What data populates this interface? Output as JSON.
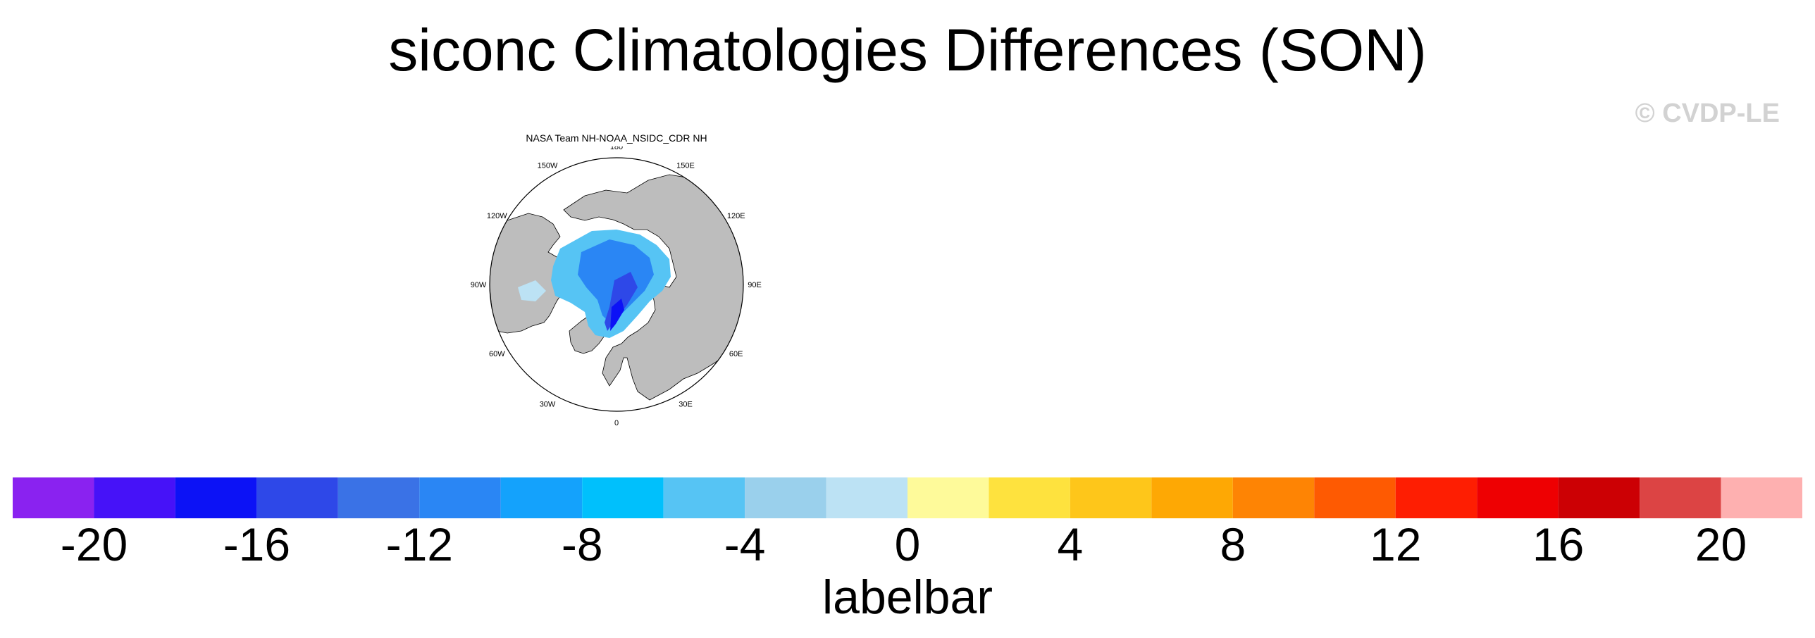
{
  "title": "siconc Climatologies Differences (SON)",
  "watermark": "© CVDP-LE",
  "panel": {
    "title": "NASA Team NH-NOAA_NSIDC_CDR NH",
    "lon_labels": [
      {
        "text": "180",
        "lon": 180
      },
      {
        "text": "150E",
        "lon": 150
      },
      {
        "text": "120E",
        "lon": 120
      },
      {
        "text": "90E",
        "lon": 90
      },
      {
        "text": "60E",
        "lon": 60
      },
      {
        "text": "30E",
        "lon": 30
      },
      {
        "text": "0",
        "lon": 0
      },
      {
        "text": "30W",
        "lon": -30
      },
      {
        "text": "60W",
        "lon": -60
      },
      {
        "text": "90W",
        "lon": -90
      },
      {
        "text": "120W",
        "lon": -120
      },
      {
        "text": "150W",
        "lon": -150
      }
    ]
  },
  "colorbar": {
    "label": "labelbar",
    "colors": [
      "#8a22f0",
      "#4612f8",
      "#0c12f6",
      "#2e48e8",
      "#3a72e6",
      "#2a86f4",
      "#14a2fc",
      "#00c0fc",
      "#56c4f4",
      "#9ad0ec",
      "#bce2f4",
      "#fefa9a",
      "#fee23e",
      "#fec61a",
      "#fea804",
      "#fe8404",
      "#fe5a02",
      "#fe1e02",
      "#ee0002",
      "#cc0004",
      "#dc4444",
      "#feb0b0"
    ],
    "tick_labels": [
      "-20",
      "-16",
      "-12",
      "-8",
      "-4",
      "0",
      "4",
      "8",
      "12",
      "16",
      "20"
    ],
    "ticks": [
      -20,
      -16,
      -12,
      -8,
      -4,
      0,
      4,
      8,
      12,
      16,
      20
    ],
    "range": [
      -22,
      22
    ]
  }
}
